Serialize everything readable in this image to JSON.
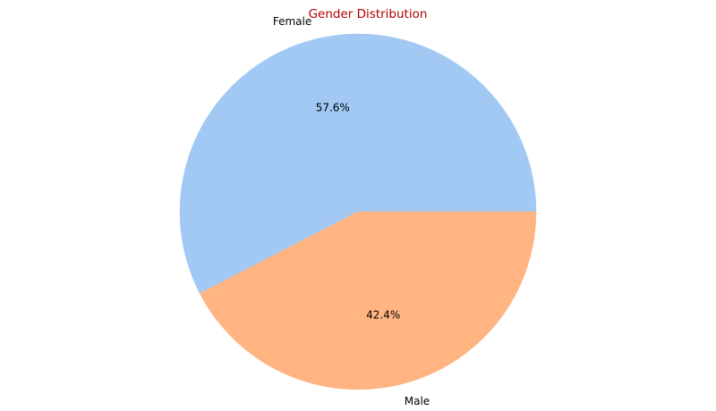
{
  "chart_data": {
    "type": "pie",
    "title": "Gender Distribution",
    "categories": [
      "Female",
      "Male"
    ],
    "values": [
      57.6,
      42.4
    ],
    "value_labels": [
      "57.6%",
      "42.4%"
    ],
    "colors": [
      "#a1c9f4",
      "#ffb482"
    ]
  }
}
